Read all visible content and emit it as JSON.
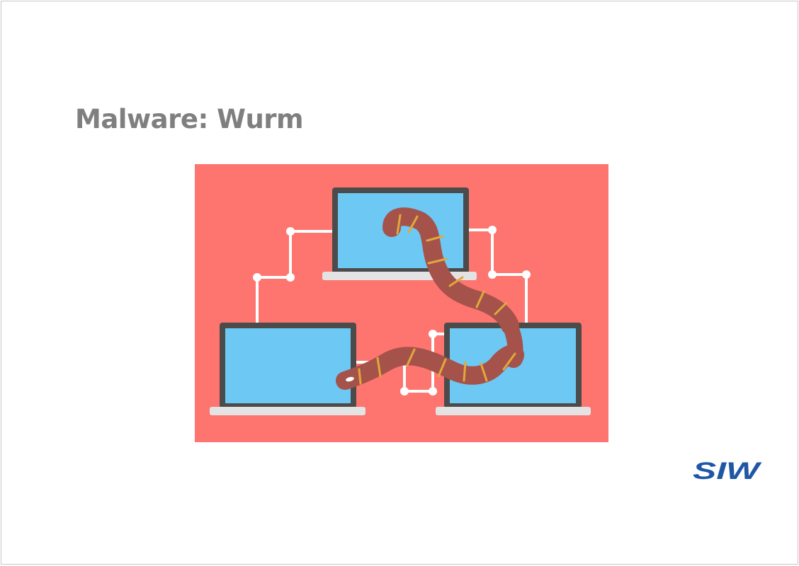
{
  "slide": {
    "title": "Malware: Wurm"
  },
  "illustration": {
    "description_icon": "computer-worm-network-icon",
    "colors": {
      "background": "#fd756e",
      "screen": "#6dc8f4",
      "bezel": "#4b4b4b",
      "base": "#e3e3e3",
      "worm": "#a5524a",
      "worm_bands": "#e0a93a",
      "network_lines": "#ffffff"
    }
  },
  "logo": {
    "text": "SIW",
    "color": "#1f57a6"
  }
}
